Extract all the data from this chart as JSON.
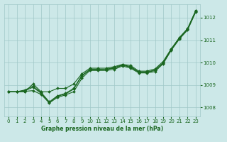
{
  "bg_color": "#cce8e8",
  "grid_color": "#a0c8c8",
  "line_color": "#1a6620",
  "xlabel": "Graphe pression niveau de la mer (hPa)",
  "ylim": [
    1007.6,
    1012.6
  ],
  "xlim": [
    -0.5,
    23.5
  ],
  "yticks": [
    1008,
    1009,
    1010,
    1011,
    1012
  ],
  "xticks": [
    0,
    1,
    2,
    3,
    4,
    5,
    6,
    7,
    8,
    9,
    10,
    11,
    12,
    13,
    14,
    15,
    16,
    17,
    18,
    19,
    20,
    21,
    22,
    23
  ],
  "line1": [
    1008.7,
    1008.7,
    1008.7,
    1009.05,
    1008.7,
    1008.7,
    1008.85,
    1008.85,
    1009.05,
    1009.5,
    1009.75,
    1009.75,
    1009.75,
    1009.82,
    1009.92,
    1009.87,
    1009.62,
    1009.62,
    1009.72,
    1010.05,
    1010.62,
    1011.12,
    1011.52,
    1012.32
  ],
  "line2": [
    1008.7,
    1008.7,
    1008.72,
    1008.75,
    1008.58,
    1008.2,
    1008.45,
    1008.56,
    1008.7,
    1009.3,
    1009.65,
    1009.65,
    1009.65,
    1009.7,
    1009.85,
    1009.75,
    1009.54,
    1009.54,
    1009.6,
    1009.95,
    1010.55,
    1011.05,
    1011.45,
    1012.25
  ],
  "line3": [
    1008.7,
    1008.7,
    1008.75,
    1008.9,
    1008.63,
    1008.22,
    1008.5,
    1008.6,
    1008.82,
    1009.4,
    1009.68,
    1009.68,
    1009.7,
    1009.75,
    1009.88,
    1009.8,
    1009.57,
    1009.57,
    1009.65,
    1009.98,
    1010.58,
    1011.08,
    1011.48,
    1012.28
  ],
  "line4": [
    1008.7,
    1008.7,
    1008.78,
    1008.95,
    1008.67,
    1008.25,
    1008.52,
    1008.63,
    1008.85,
    1009.43,
    1009.7,
    1009.7,
    1009.7,
    1009.78,
    1009.9,
    1009.82,
    1009.58,
    1009.58,
    1009.67,
    1010.0,
    1010.6,
    1011.1,
    1011.5,
    1012.3
  ]
}
